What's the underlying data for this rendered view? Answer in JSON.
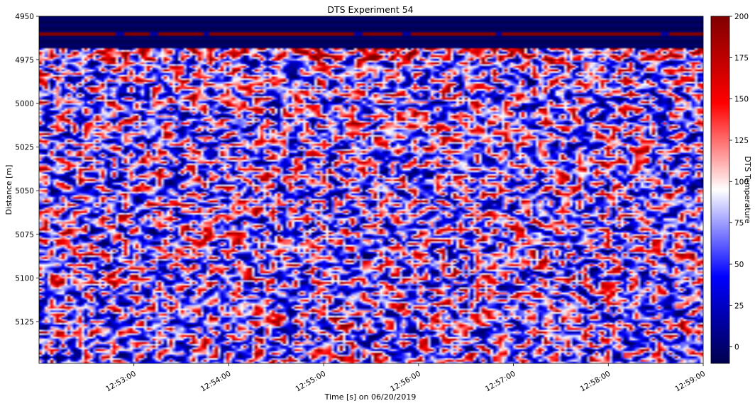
{
  "chart_data": {
    "type": "heatmap",
    "title": "DTS Experiment 54",
    "xlabel": "Time [s] on 06/20/2019",
    "ylabel": "Distance [m]",
    "x_ticks": [
      "12:53:00",
      "12:54:00",
      "12:55:00",
      "12:56:00",
      "12:57:00",
      "12:58:00",
      "12:59:00"
    ],
    "x_tick_minutes": [
      53,
      54,
      55,
      56,
      57,
      58,
      59
    ],
    "xlim_minutes": [
      52.0,
      59.0
    ],
    "y_ticks": [
      4950,
      4975,
      5000,
      5025,
      5050,
      5075,
      5100,
      5125
    ],
    "ylim": [
      4950,
      5149
    ],
    "y_inverted": true,
    "colorbar": {
      "label": "DTS Temperature",
      "ticks": [
        0,
        25,
        50,
        75,
        100,
        125,
        150,
        175,
        200
      ],
      "range": [
        -10,
        200
      ],
      "colormap": "seismic",
      "colors": [
        "#00004d",
        "#0000ff",
        "#ffffff",
        "#ff0000",
        "#800000"
      ]
    },
    "features": {
      "cold_band_distance": [
        4950,
        4968
      ],
      "hot_line_distance": 4960,
      "hot_line_temperature": 200,
      "cold_band_temperature": -10,
      "noise_region_distance": [
        4968,
        5149
      ],
      "noise_temperature_range": [
        0,
        200
      ]
    }
  }
}
